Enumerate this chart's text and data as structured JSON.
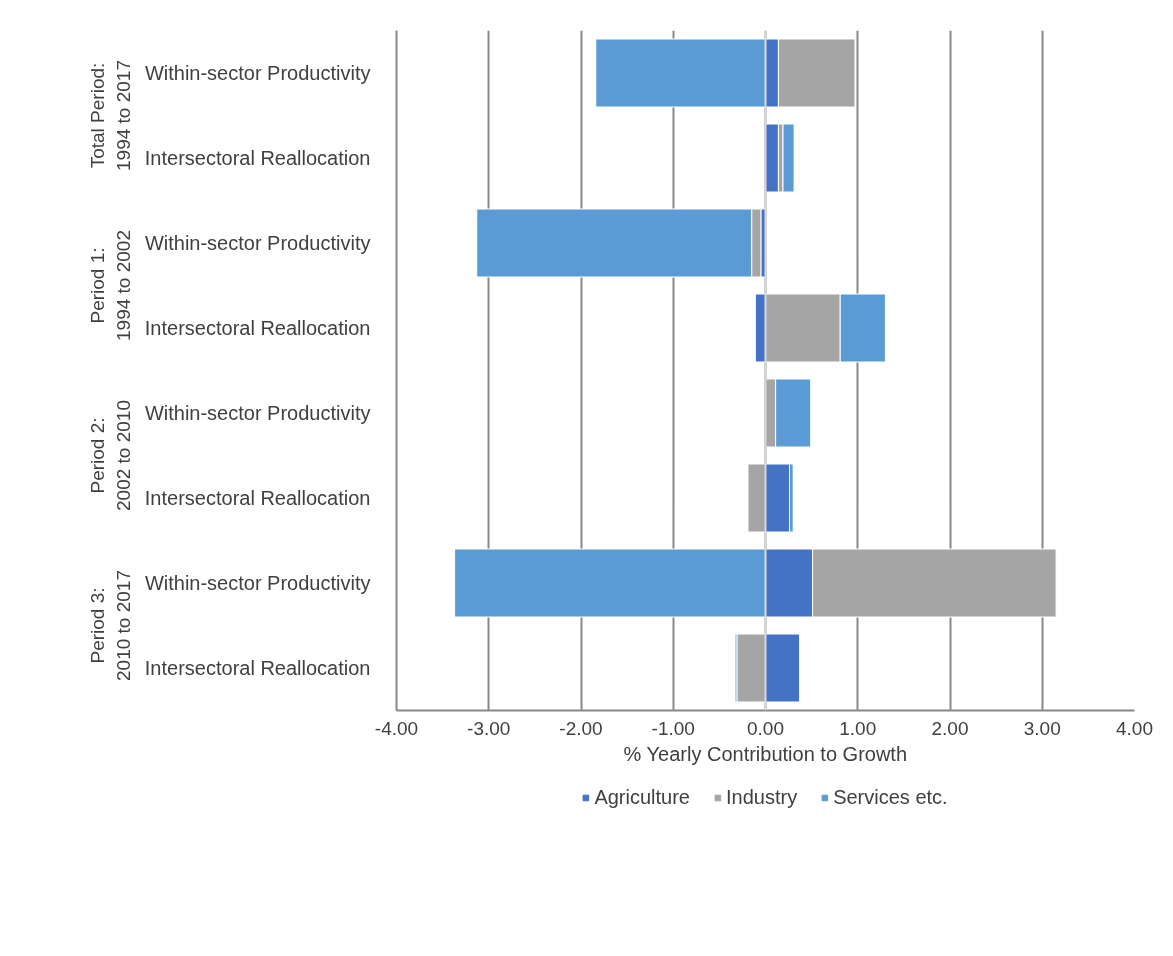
{
  "chart_data": {
    "type": "bar",
    "orientation": "horizontal",
    "stacked": true,
    "xlabel": "% Yearly Contribution to Growth",
    "categories": [
      "Within-sector Productivity",
      "Intersectoral Reallocation",
      "Within-sector Productivity",
      "Intersectoral Reallocation",
      "Within-sector Productivity",
      "Intersectoral Reallocation",
      "Within-sector Productivity",
      "Intersectoral Reallocation"
    ],
    "annotations": [
      "Total Period: 1994 to 2017",
      "Period 1: 1994 to 2002",
      "Period 2: 2002 to 2010",
      "Period 3: 2010 to 2017"
    ],
    "series": [
      {
        "name": "Agriculture",
        "color": "#4472c4",
        "values": [
          0.14,
          0.14,
          -0.05,
          -0.11,
          null,
          0.26,
          0.51,
          0.37
        ]
      },
      {
        "name": "Industry",
        "color": "#a5a5a5",
        "values": [
          0.83,
          0.05,
          -0.1,
          0.81,
          0.11,
          -0.19,
          2.64,
          -0.31
        ]
      },
      {
        "name": "Services etc.",
        "color": "#5b9bd5",
        "values": [
          -1.84,
          0.12,
          -2.98,
          0.49,
          0.38,
          0.04,
          -3.37,
          -0.02
        ]
      }
    ],
    "xlim": [
      -4,
      4
    ],
    "xticks": [
      {
        "value": -4,
        "label": "-4.00"
      },
      {
        "value": -3,
        "label": "-3.00"
      },
      {
        "value": -2,
        "label": "-2.00"
      },
      {
        "value": -1,
        "label": "-1.00"
      },
      {
        "value": 0,
        "label": "0.00"
      },
      {
        "value": 1,
        "label": "1.00"
      },
      {
        "value": 2,
        "label": "2.00"
      },
      {
        "value": 3,
        "label": "3.00"
      },
      {
        "value": 4,
        "label": "4.00"
      }
    ],
    "grid": "x",
    "legend": "bottom"
  }
}
